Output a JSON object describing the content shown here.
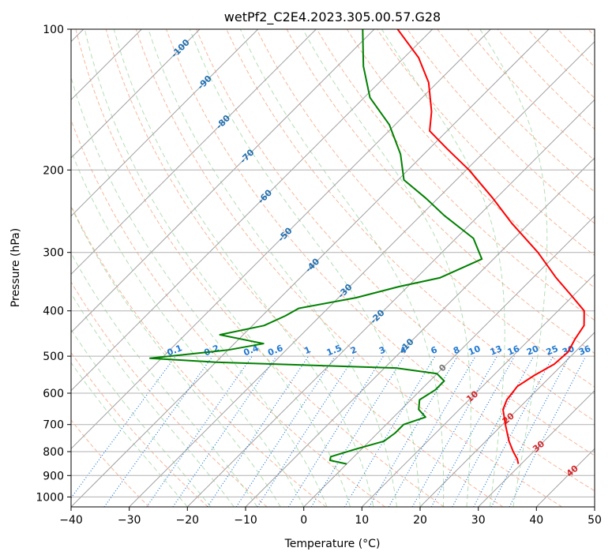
{
  "chart_data": {
    "type": "skew-t",
    "title": "wetPf2_C2E4.2023.305.00.57.G28",
    "xlabel": "Temperature (°C)",
    "ylabel": "Pressure (hPa)",
    "xlim": [
      -40,
      50
    ],
    "ylim": [
      1050,
      100
    ],
    "x_ticks": [
      -40,
      -30,
      -20,
      -10,
      0,
      10,
      20,
      30,
      40,
      50
    ],
    "y_ticks": [
      100,
      200,
      300,
      400,
      500,
      600,
      700,
      800,
      900,
      1000
    ],
    "y_scale": "log",
    "grid": true,
    "colors": {
      "temperature": "#ff0000",
      "dewpoint": "#008000",
      "isotherm": "#a0a0a0",
      "dry_adiabat": "#f4a582",
      "moist_adiabat": "#74c476",
      "mixing_ratio": "#1f78d1",
      "isotherm_label": "#1f6fb0",
      "dry_adiabat_label": "#d62728",
      "zero_label": "#777777"
    },
    "series": [
      {
        "key": "temperature",
        "points": [
          {
            "p": 850,
            "t": 29.5
          },
          {
            "p": 830,
            "t": 28.5
          },
          {
            "p": 800,
            "t": 26.5
          },
          {
            "p": 760,
            "t": 24.0
          },
          {
            "p": 700,
            "t": 20.5
          },
          {
            "p": 650,
            "t": 17.5
          },
          {
            "p": 620,
            "t": 16.5
          },
          {
            "p": 580,
            "t": 16.0
          },
          {
            "p": 550,
            "t": 17.0
          },
          {
            "p": 520,
            "t": 18.5
          },
          {
            "p": 490,
            "t": 18.8
          },
          {
            "p": 460,
            "t": 17.8
          },
          {
            "p": 430,
            "t": 17.0
          },
          {
            "p": 400,
            "t": 14.5
          },
          {
            "p": 370,
            "t": 9.5
          },
          {
            "p": 340,
            "t": 4.0
          },
          {
            "p": 300,
            "t": -3.5
          },
          {
            "p": 260,
            "t": -13.0
          },
          {
            "p": 230,
            "t": -20.5
          },
          {
            "p": 200,
            "t": -29.5
          },
          {
            "p": 180,
            "t": -37.0
          },
          {
            "p": 165,
            "t": -43.0
          },
          {
            "p": 150,
            "t": -46.0
          },
          {
            "p": 130,
            "t": -51.5
          },
          {
            "p": 115,
            "t": -57.5
          },
          {
            "p": 100,
            "t": -66.0
          }
        ]
      },
      {
        "key": "dewpoint",
        "points": [
          {
            "p": 850,
            "t": 0.0
          },
          {
            "p": 835,
            "t": -3.5
          },
          {
            "p": 820,
            "t": -4.0
          },
          {
            "p": 790,
            "t": -1.0
          },
          {
            "p": 760,
            "t": 2.5
          },
          {
            "p": 730,
            "t": 3.0
          },
          {
            "p": 700,
            "t": 3.0
          },
          {
            "p": 675,
            "t": 5.5
          },
          {
            "p": 650,
            "t": 3.0
          },
          {
            "p": 620,
            "t": 1.5
          },
          {
            "p": 590,
            "t": 2.5
          },
          {
            "p": 565,
            "t": 2.5
          },
          {
            "p": 545,
            "t": 0.0
          },
          {
            "p": 530,
            "t": -8.0
          },
          {
            "p": 515,
            "t": -40.0
          },
          {
            "p": 505,
            "t": -52.0
          },
          {
            "p": 485,
            "t": -40.0
          },
          {
            "p": 470,
            "t": -35.0
          },
          {
            "p": 450,
            "t": -44.0
          },
          {
            "p": 430,
            "t": -38.0
          },
          {
            "p": 410,
            "t": -36.0
          },
          {
            "p": 395,
            "t": -35.0
          },
          {
            "p": 375,
            "t": -27.0
          },
          {
            "p": 355,
            "t": -21.5
          },
          {
            "p": 340,
            "t": -16.0
          },
          {
            "p": 310,
            "t": -12.0
          },
          {
            "p": 280,
            "t": -17.0
          },
          {
            "p": 250,
            "t": -26.0
          },
          {
            "p": 230,
            "t": -32.0
          },
          {
            "p": 210,
            "t": -39.0
          },
          {
            "p": 185,
            "t": -44.0
          },
          {
            "p": 160,
            "t": -51.0
          },
          {
            "p": 140,
            "t": -59.0
          },
          {
            "p": 120,
            "t": -65.5
          },
          {
            "p": 100,
            "t": -72.0
          }
        ]
      }
    ],
    "isotherm_labels": [
      {
        "text": "-100",
        "t": -100,
        "p": 110
      },
      {
        "text": "-90",
        "t": -90,
        "p": 130
      },
      {
        "text": "-80",
        "t": -80,
        "p": 158
      },
      {
        "text": "-70",
        "t": -70,
        "p": 187
      },
      {
        "text": "-60",
        "t": -60,
        "p": 228
      },
      {
        "text": "-50",
        "t": -50,
        "p": 275
      },
      {
        "text": "-40",
        "t": -40,
        "p": 320
      },
      {
        "text": "-30",
        "t": -30,
        "p": 363
      },
      {
        "text": "-20",
        "t": -20,
        "p": 412
      },
      {
        "text": "-10",
        "t": -10,
        "p": 475
      },
      {
        "text": "0",
        "t": 0,
        "p": 530
      }
    ],
    "dry_adiabat_labels": [
      {
        "text": "10",
        "t": 10,
        "p": 610
      },
      {
        "text": "20",
        "t": 20,
        "p": 680
      },
      {
        "text": "30",
        "t": 30,
        "p": 780
      },
      {
        "text": "40",
        "t": 40,
        "p": 880
      }
    ],
    "mixing_ratio_labels": [
      "0.1",
      "0.2",
      "0.4",
      "0.6",
      "1",
      "1.5",
      "2",
      "3",
      "4",
      "6",
      "8",
      "10",
      "13",
      "16",
      "20",
      "25",
      "30",
      "36"
    ],
    "mixing_ratio_label_pressure": 500
  }
}
